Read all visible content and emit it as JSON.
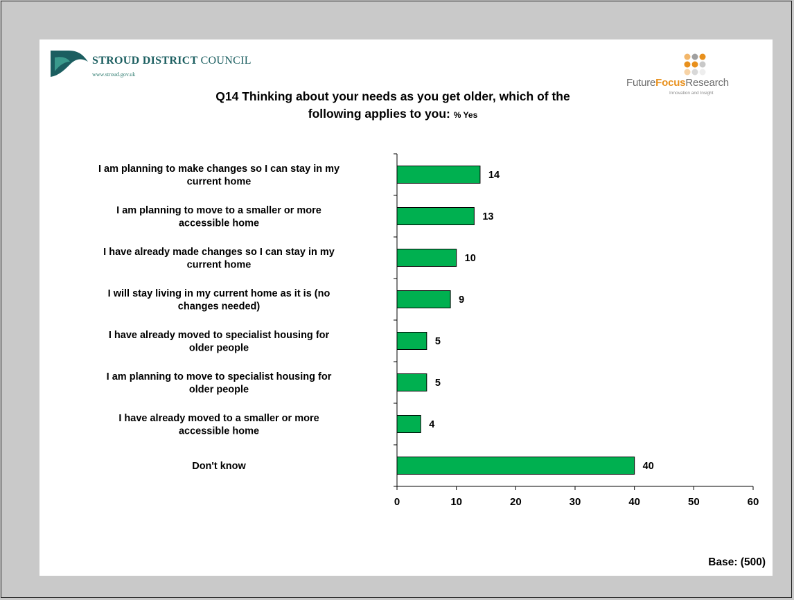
{
  "header": {
    "council_name_bold": "STROUD DISTRICT",
    "council_name_light": "COUNCIL",
    "council_url": "www.stroud.gov.uk",
    "research_brand_plain": "Future",
    "research_brand_bold": "Focus",
    "research_brand_end": "Research",
    "research_tagline": "Innovation and Insight"
  },
  "title_line1": "Q14 Thinking about your needs as you get older, which of the",
  "title_line2": "following applies to you:",
  "title_suffix": "% Yes",
  "base_text": "Base: (500)",
  "colors": {
    "bar_fill": "#00b050",
    "bar_stroke": "#000000",
    "logo_teal": "#1b5e60",
    "brand_orange": "#e8901c",
    "background": "#c9c9c9"
  },
  "chart_data": {
    "type": "bar",
    "orientation": "horizontal",
    "categories": [
      [
        "I am planning to make changes so I can stay in my",
        "current home"
      ],
      [
        "I am planning to move to a smaller or more",
        "accessible home"
      ],
      [
        "I have already made changes so I can stay in my",
        "current home"
      ],
      [
        "I will stay living in my current home as it is (no",
        "changes needed)"
      ],
      [
        "I have already moved to specialist housing for",
        "older people"
      ],
      [
        "I am planning to move to specialist housing for",
        "older people"
      ],
      [
        "I have already moved to a smaller or more",
        "accessible home"
      ],
      [
        "Don't know"
      ]
    ],
    "values": [
      14,
      13,
      10,
      9,
      5,
      5,
      4,
      40
    ],
    "xlim": [
      0,
      60
    ],
    "xticks": [
      0,
      10,
      20,
      30,
      40,
      50,
      60
    ],
    "grid": false,
    "legend": "none"
  }
}
